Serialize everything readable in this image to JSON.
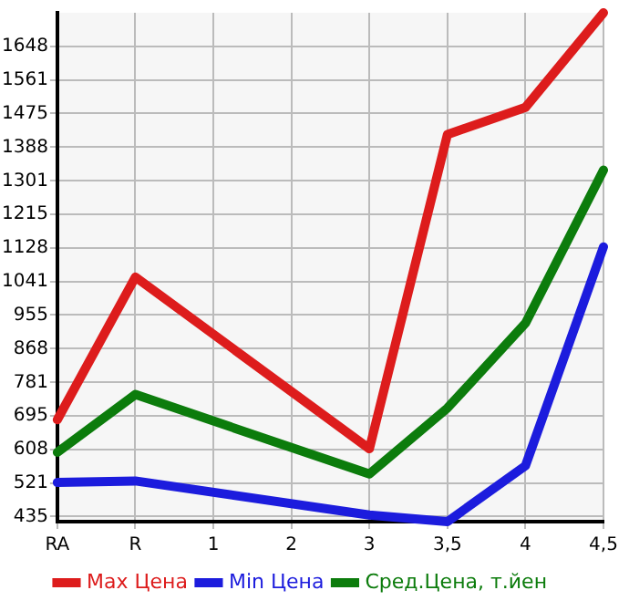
{
  "chart_data": {
    "type": "line",
    "categories": [
      "RA",
      "R",
      "1",
      "2",
      "3",
      "3,5",
      "4",
      "4,5"
    ],
    "series": [
      {
        "name": "Max Цена",
        "color": "#dd1c1c",
        "values": [
          685,
          1053,
          null,
          null,
          610,
          1421,
          1491,
          1735
        ]
      },
      {
        "name": "Min Цена",
        "color": "#1c1cdd",
        "values": [
          523,
          527,
          null,
          null,
          439,
          422,
          566,
          1131
        ]
      },
      {
        "name": "Сред.Цена, т.йен",
        "color": "#0c7c0c",
        "values": [
          601,
          750,
          null,
          null,
          545,
          715,
          934,
          1329
        ]
      }
    ],
    "ylim": [
      422,
      1735
    ],
    "yticks": [
      435,
      521,
      608,
      695,
      781,
      868,
      955,
      1041,
      1128,
      1215,
      1301,
      1388,
      1475,
      1561,
      1648
    ],
    "grid": true,
    "legend": "bottom",
    "marker": "none",
    "line_style": "solid"
  }
}
